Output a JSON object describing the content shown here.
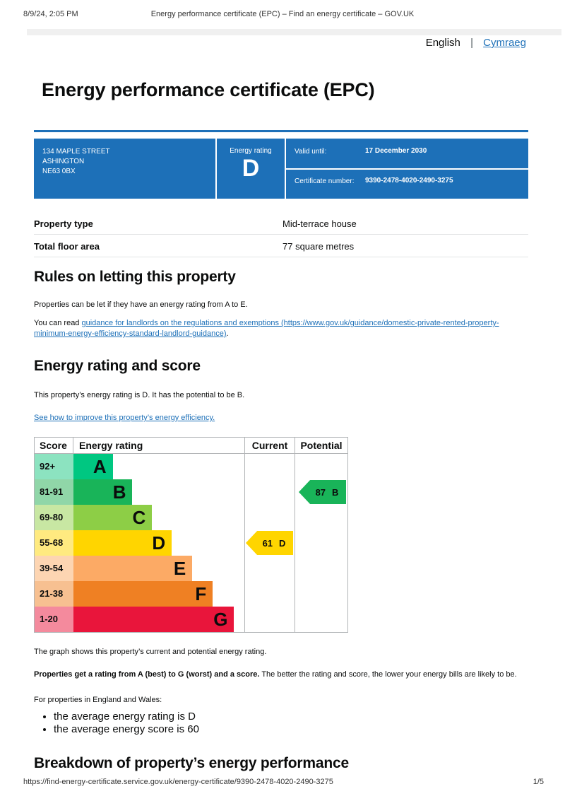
{
  "print_header": {
    "datetime": "8/9/24, 2:05 PM",
    "document_title": "Energy performance certificate (EPC) – Find an energy certificate – GOV.UK"
  },
  "language_bar": {
    "english": "English",
    "separator": "|",
    "cymraeg": "Cymraeg"
  },
  "page": {
    "title": "Energy performance certificate (EPC)"
  },
  "summary_box": {
    "background_color": "#1d70b8",
    "address_lines": [
      "134 MAPLE STREET",
      "ASHINGTON",
      "NE63 0BX"
    ],
    "energy_rating_label": "Energy rating",
    "energy_rating": "D",
    "valid_until_label": "Valid until:",
    "valid_until": "17 December 2030",
    "certificate_number_label": "Certificate number:",
    "certificate_number": "9390-2478-4020-2490-3275"
  },
  "property_table": {
    "rows": [
      {
        "label": "Property type",
        "value": "Mid-terrace house"
      },
      {
        "label": "Total floor area",
        "value": "77 square metres"
      }
    ]
  },
  "rules_section": {
    "heading": "Rules on letting this property",
    "paragraph1": "Properties can be let if they have an energy rating from A to E.",
    "paragraph2_prefix": "You can read ",
    "link_text": "guidance for landlords on the regulations and exemptions (https://www.gov.uk/guidance/domestic-private-rented-property-minimum-energy-efficiency-standard-landlord-guidance)",
    "paragraph2_suffix": "."
  },
  "rating_section": {
    "heading": "Energy rating and score",
    "paragraph": "This property’s energy rating is D. It has the potential to be B.",
    "improve_link": "See how to improve this property’s energy efficiency."
  },
  "chart_data": {
    "type": "table",
    "subtype": "epc-energy-rating-chart",
    "columns": [
      "Score",
      "Energy rating",
      "Current",
      "Potential"
    ],
    "bands": [
      {
        "score_range": "92+",
        "letter": "A",
        "color": "#00c781",
        "tint": "#8ce3c0",
        "width_pct": 23
      },
      {
        "score_range": "81-91",
        "letter": "B",
        "color": "#19b459",
        "tint": "#90d6a8",
        "width_pct": 34.5
      },
      {
        "score_range": "69-80",
        "letter": "C",
        "color": "#8dce46",
        "tint": "#c8e7a3",
        "width_pct": 46
      },
      {
        "score_range": "55-68",
        "letter": "D",
        "color": "#ffd500",
        "tint": "#ffea80",
        "width_pct": 57.5
      },
      {
        "score_range": "39-54",
        "letter": "E",
        "color": "#fcaa65",
        "tint": "#fdd5b2",
        "width_pct": 69.5
      },
      {
        "score_range": "21-38",
        "letter": "F",
        "color": "#ef8023",
        "tint": "#f7c091",
        "width_pct": 81.5
      },
      {
        "score_range": "1-20",
        "letter": "G",
        "color": "#e9153b",
        "tint": "#f48a9d",
        "width_pct": 94
      }
    ],
    "current": {
      "score": 61,
      "letter": "D",
      "band_index": 3,
      "color": "#ffd500"
    },
    "potential": {
      "score": 87,
      "letter": "B",
      "band_index": 1,
      "color": "#19b459"
    },
    "title": "Energy rating and score",
    "legend_position": "none",
    "grid": "column-dividers"
  },
  "chart_notes": {
    "graph_note": "The graph shows this property’s current and potential energy rating.",
    "explain_bold": "Properties get a rating from A (best) to G (worst) and a score.",
    "explain_rest": " The better the rating and score, the lower your energy bills are likely to be.",
    "regions_intro": "For properties in England and Wales:",
    "bullets": [
      "the average energy rating is D",
      "the average energy score is 60"
    ]
  },
  "breakdown_section": {
    "heading": "Breakdown of property’s energy performance"
  },
  "print_footer": {
    "url": "https://find-energy-certificate.service.gov.uk/energy-certificate/9390-2478-4020-2490-3275",
    "page_indicator": "1/5"
  },
  "colors": {
    "brand_blue": "#1d70b8",
    "link_blue": "#1d70b8",
    "chart_border": "#b1b4b6",
    "table_divider": "#e3e4e5"
  }
}
